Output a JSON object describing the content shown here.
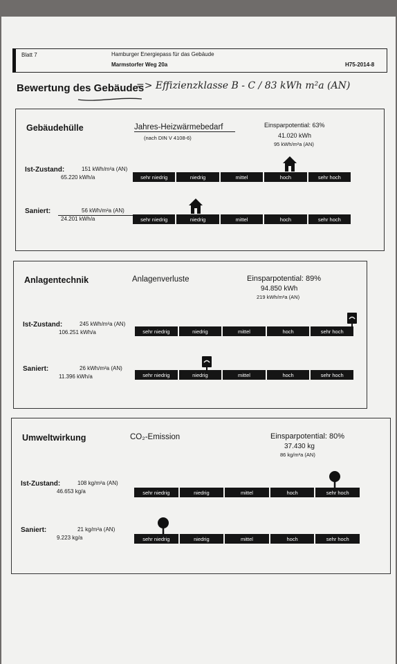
{
  "header": {
    "sheet": "Blatt 7",
    "program": "Hamburger Energiepass für das Gebäude",
    "address": "Marmstorfer Weg 20a",
    "code": "H75-2014-8"
  },
  "page_title": "Bewertung des Gebäudes",
  "handwritten_note": "=> Effizienzklasse B - C / 83 kWh m²a (AN)",
  "scale_labels": [
    "sehr niedrig",
    "niedrig",
    "mittel",
    "hoch",
    "sehr hoch"
  ],
  "sections": [
    {
      "title": "Gebäudehülle",
      "metric": "Jahres-Heizwärmebedarf",
      "norm": "(nach DIN V 4108-6)",
      "savings_label": "Einsparpotential: 63%",
      "savings_abs": "41.020 kWh",
      "savings_spec": "95 kWh/m²a (AN)",
      "ist": {
        "label": "Ist-Zustand:",
        "spec": "151 kWh/m²a (AN)",
        "abs": "65.220 kWh/a",
        "level": 3.6
      },
      "saniert": {
        "label": "Saniert:",
        "spec": "56 kWh/m²a (AN)",
        "abs": "24.201 kWh/a",
        "level": 1.45
      }
    },
    {
      "title": "Anlagentechnik",
      "metric": "Anlagenverluste",
      "norm": "",
      "savings_label": "Einsparpotential: 89%",
      "savings_abs": "94.850 kWh",
      "savings_spec": "219 kWh/m²a (AN)",
      "ist": {
        "label": "Ist-Zustand:",
        "spec": "245 kWh/m²a (AN)",
        "abs": "106.251 kWh/a",
        "level": 4.97
      },
      "saniert": {
        "label": "Saniert:",
        "spec": "26 kWh/m²a (AN)",
        "abs": "11.396 kWh/a",
        "level": 1.65
      }
    },
    {
      "title": "Umweltwirkung",
      "metric": "CO₂-Emission",
      "norm": "",
      "savings_label": "Einsparpotential: 80%",
      "savings_abs": "37.430 kg",
      "savings_spec": "86 kg/m²a (AN)",
      "ist": {
        "label": "Ist-Zustand:",
        "spec": "108 kg/m²a (AN)",
        "abs": "46.653 kg/a",
        "level": 4.45
      },
      "saniert": {
        "label": "Saniert:",
        "spec": "21 kg/m²a (AN)",
        "abs": "9.223 kg/a",
        "level": 0.65
      }
    }
  ]
}
